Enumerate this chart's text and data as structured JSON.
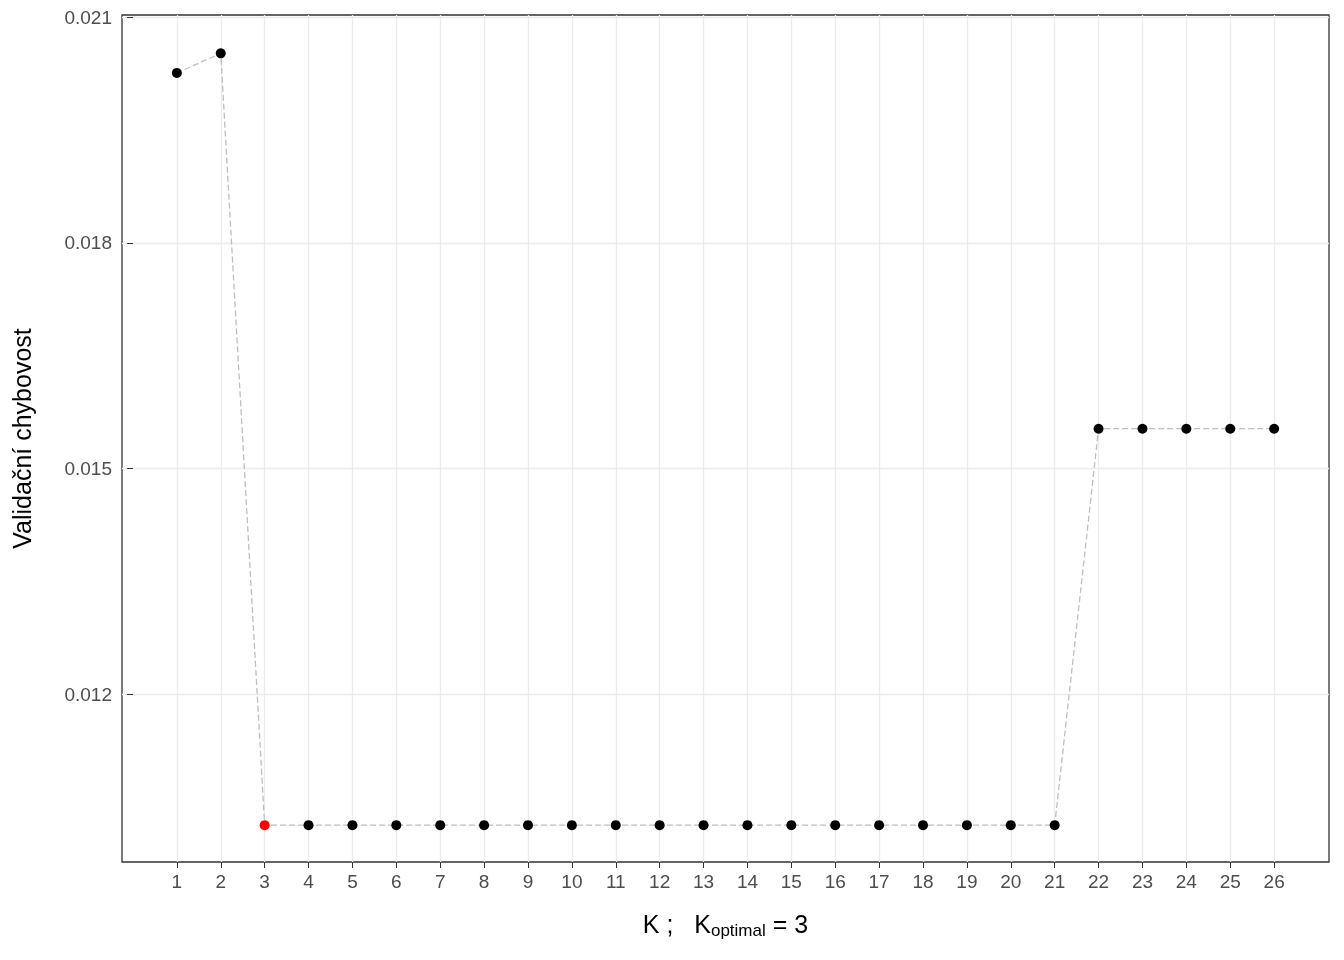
{
  "chart_data": {
    "type": "line",
    "xlabel": "K ;   K$_{optimal}$ = 3",
    "ylabel": "Validační chybovost",
    "x": [
      1,
      2,
      3,
      4,
      5,
      6,
      7,
      8,
      9,
      10,
      11,
      12,
      13,
      14,
      15,
      16,
      17,
      18,
      19,
      20,
      21,
      22,
      23,
      24,
      25,
      26
    ],
    "series": [
      {
        "color": "#bebebe",
        "colors": [
          "#000000",
          "#000000",
          "#ff0000",
          "#000000",
          "#000000",
          "#000000",
          "#000000",
          "#000000",
          "#000000",
          "#000000",
          "#000000",
          "#000000",
          "#000000",
          "#000000",
          "#000000",
          "#000000",
          "#000000",
          "#000000",
          "#000000",
          "#000000",
          "#000000",
          "#000000",
          "#000000",
          "#000000",
          "#000000",
          "#000000"
        ],
        "values": [
          0.02026,
          0.02052,
          0.01026,
          0.01026,
          0.01026,
          0.01026,
          0.01026,
          0.01026,
          0.01026,
          0.01026,
          0.01026,
          0.01026,
          0.01026,
          0.01026,
          0.01026,
          0.01026,
          0.01026,
          0.01026,
          0.01026,
          0.01026,
          0.01026,
          0.01553,
          0.01553,
          0.01553,
          0.01553,
          0.01553
        ]
      }
    ],
    "xlim": [
      -0.25,
      27.25
    ],
    "xticks": [
      1,
      2,
      3,
      4,
      5,
      6,
      7,
      8,
      9,
      10,
      11,
      12,
      13,
      14,
      15,
      16,
      17,
      18,
      19,
      20,
      21,
      22,
      23,
      24,
      25,
      26
    ],
    "ylim": [
      0.00977,
      0.02103
    ],
    "yticks": [
      0.012,
      0.015,
      0.018,
      0.021
    ],
    "grid": true,
    "marker": "circle",
    "line_style": "dashed"
  }
}
